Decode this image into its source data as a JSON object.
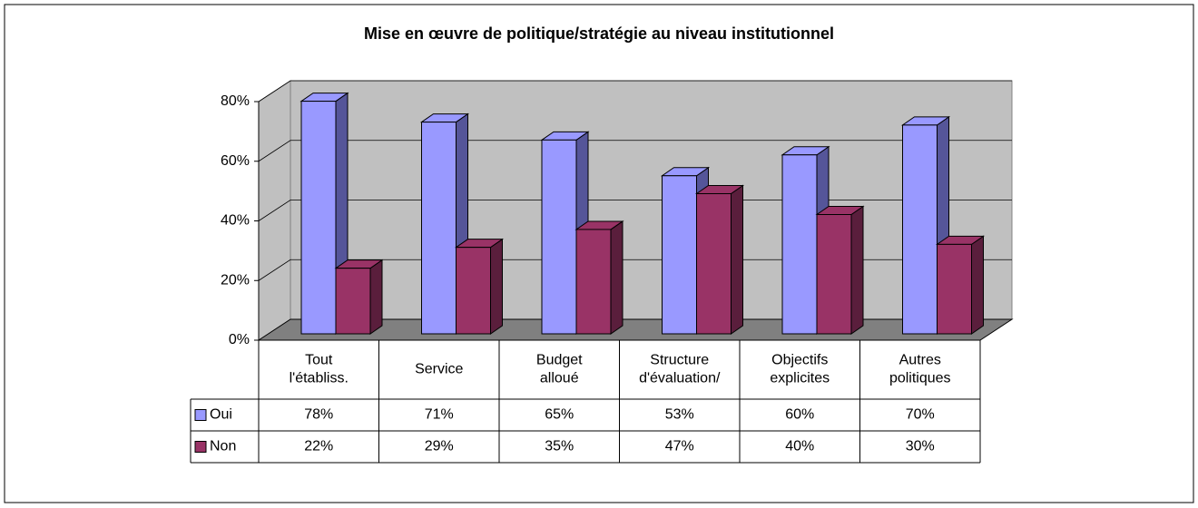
{
  "chart_data": {
    "type": "bar3d",
    "title": "Mise en œuvre de politique/stratégie au niveau institutionnel",
    "categories": [
      "Tout l'établiss.",
      "Service",
      "Budget alloué",
      "Structure d'évaluation/",
      "Objectifs explicites",
      "Autres politiques"
    ],
    "series": [
      {
        "name": "Oui",
        "color": "#9999ff",
        "side": "#555599",
        "values": [
          78,
          71,
          65,
          53,
          60,
          70
        ],
        "value_labels": [
          "78%",
          "71%",
          "65%",
          "53%",
          "60%",
          "70%"
        ]
      },
      {
        "name": "Non",
        "color": "#993366",
        "side": "#5a1e3c",
        "values": [
          22,
          29,
          35,
          47,
          40,
          30
        ],
        "value_labels": [
          "22%",
          "29%",
          "35%",
          "47%",
          "40%",
          "30%"
        ]
      }
    ],
    "ylim": [
      0,
      80
    ],
    "yticks": [
      {
        "value": 0,
        "label": "0%"
      },
      {
        "value": 20,
        "label": "20%"
      },
      {
        "value": 40,
        "label": "40%"
      },
      {
        "value": 60,
        "label": "60%"
      },
      {
        "value": 80,
        "label": "80%"
      }
    ],
    "grid": true
  }
}
